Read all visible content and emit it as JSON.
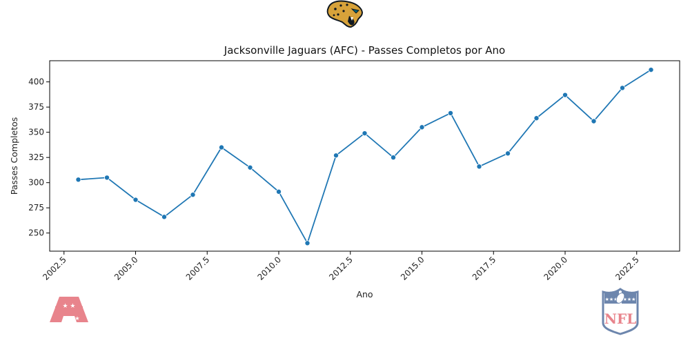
{
  "chart_data": {
    "type": "line",
    "title": "Jacksonville Jaguars (AFC) - Passes Completos por Ano",
    "xlabel": "Ano",
    "ylabel": "Passes Completos",
    "xlim": [
      2002.0,
      2024.0
    ],
    "ylim": [
      232,
      421
    ],
    "x_ticks": [
      2002.5,
      2005.0,
      2007.5,
      2010.0,
      2012.5,
      2015.0,
      2017.5,
      2020.0,
      2022.5
    ],
    "x_tick_labels": [
      "2002.5",
      "2005.0",
      "2007.5",
      "2010.0",
      "2012.5",
      "2015.0",
      "2017.5",
      "2020.0",
      "2022.5"
    ],
    "y_ticks": [
      250,
      275,
      300,
      325,
      350,
      375,
      400
    ],
    "y_tick_labels": [
      "250",
      "275",
      "300",
      "325",
      "350",
      "375",
      "400"
    ],
    "grid": false,
    "series": [
      {
        "x": [
          2003,
          2004,
          2005,
          2006,
          2007,
          2008,
          2009,
          2010,
          2011,
          2012,
          2013,
          2014,
          2015,
          2016,
          2017,
          2018,
          2019,
          2020,
          2021,
          2022,
          2023
        ],
        "values": [
          303,
          305,
          283,
          266,
          288,
          335,
          315,
          291,
          240,
          327,
          349,
          325,
          355,
          369,
          316,
          329,
          364,
          387,
          361,
          394,
          412
        ],
        "color": "#1f77b4",
        "marker": "circle"
      }
    ]
  },
  "logos": {
    "team": "jaguars-head-logo",
    "conference": "afc-logo",
    "league": "nfl-shield-logo",
    "afc_color": "#e8848c",
    "nfl_blue": "#6d86ad",
    "nfl_red": "#e8848c"
  }
}
